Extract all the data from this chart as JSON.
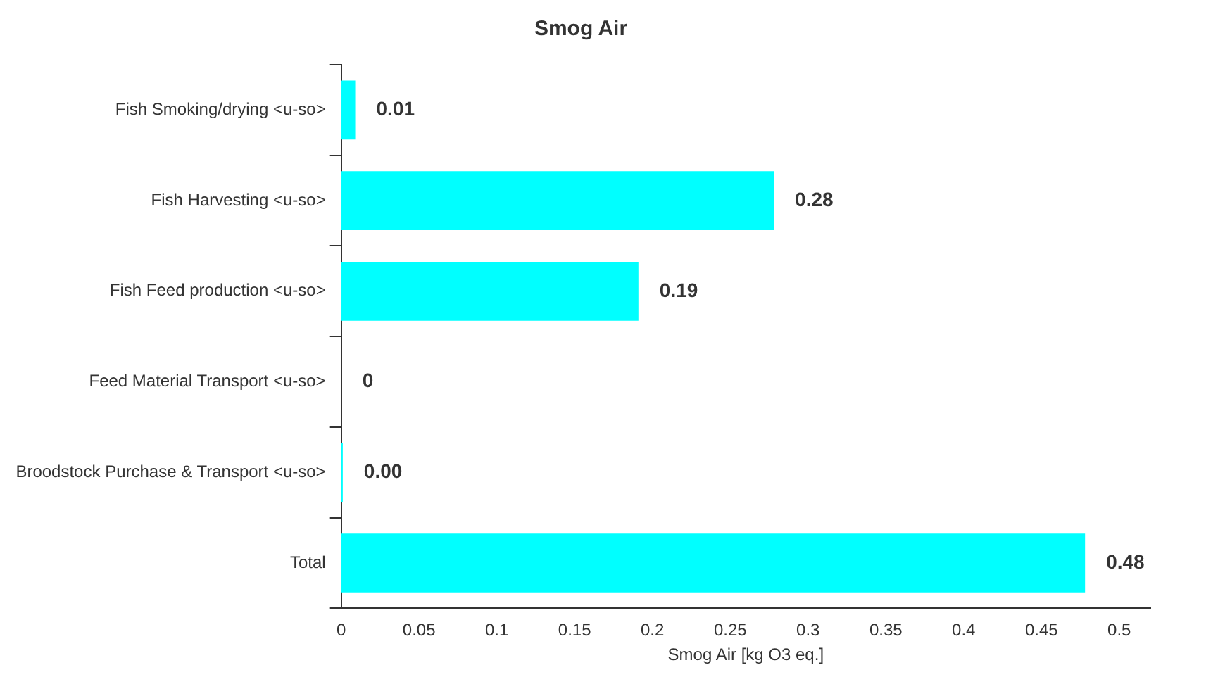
{
  "chart_data": {
    "type": "bar",
    "orientation": "horizontal",
    "title": "Smog Air",
    "xlabel": "Smog Air [kg O3 eq.]",
    "categories": [
      "Fish Smoking/drying <u-so>",
      "Fish Harvesting <u-so>",
      "Fish Feed production <u-so>",
      "Feed Material Transport <u-so>",
      "Broodstock Purchase & Transport <u-so>",
      "Total"
    ],
    "values": [
      0.009,
      0.278,
      0.191,
      0,
      0.001,
      0.478
    ],
    "value_labels": [
      "0.01",
      "0.28",
      "0.19",
      "0",
      "0.00",
      "0.48"
    ],
    "color": "#00ffff",
    "xlim": [
      0,
      0.52
    ],
    "xticks": [
      0,
      0.05,
      0.1,
      0.15,
      0.2,
      0.25,
      0.3,
      0.35,
      0.4,
      0.45,
      0.5
    ],
    "grid": false,
    "legend": false
  }
}
